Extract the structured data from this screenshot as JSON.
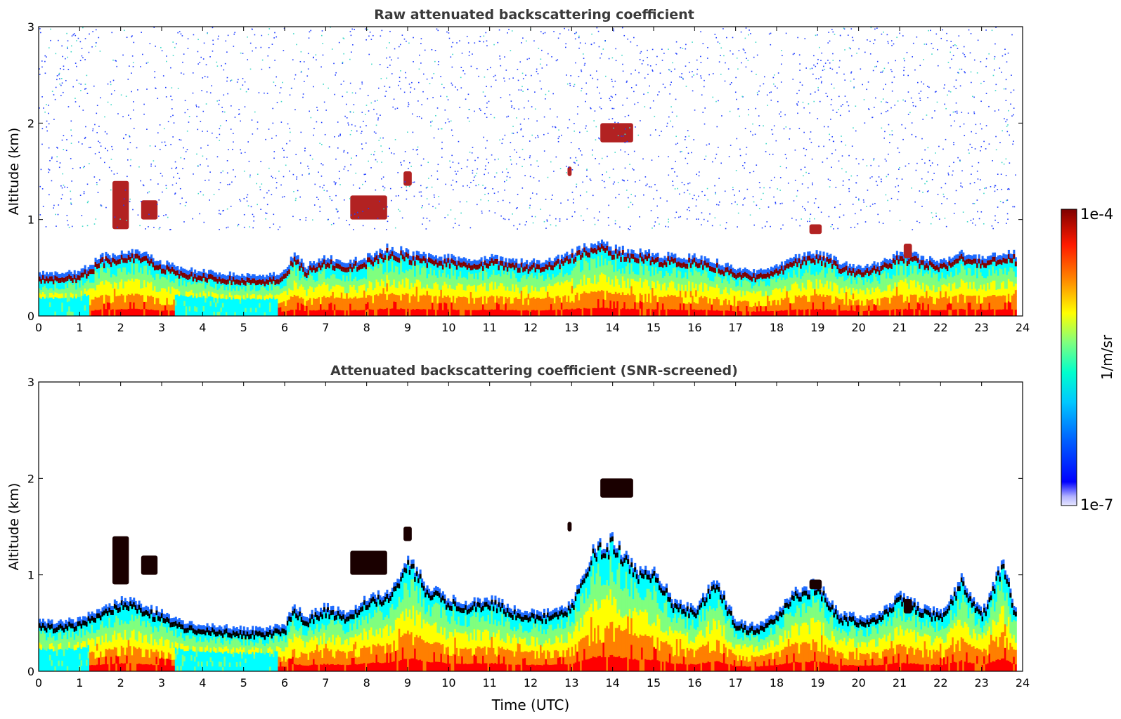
{
  "chart_data": [
    {
      "type": "heatmap",
      "title": "Raw attenuated backscattering coefficient",
      "xlabel": "",
      "ylabel": "Altitude (km)",
      "xlim": [
        0,
        24
      ],
      "ylim": [
        0,
        3
      ],
      "x_ticks": [
        "0",
        "1",
        "2",
        "3",
        "4",
        "5",
        "6",
        "7",
        "8",
        "9",
        "10",
        "11",
        "12",
        "13",
        "14",
        "15",
        "16",
        "17",
        "18",
        "19",
        "20",
        "21",
        "22",
        "23",
        "24"
      ],
      "y_ticks": [
        "0",
        "1",
        "2",
        "3"
      ],
      "grid": false,
      "screened": false,
      "layer_top_km": [
        [
          0,
          0.38
        ],
        [
          0.5,
          0.38
        ],
        [
          1,
          0.4
        ],
        [
          1.5,
          0.55
        ],
        [
          2,
          0.6
        ],
        [
          2.5,
          0.58
        ],
        [
          3,
          0.5
        ],
        [
          3.5,
          0.42
        ],
        [
          4,
          0.4
        ],
        [
          4.5,
          0.38
        ],
        [
          5,
          0.36
        ],
        [
          5.5,
          0.35
        ],
        [
          6,
          0.4
        ],
        [
          6.2,
          0.6
        ],
        [
          6.5,
          0.45
        ],
        [
          7,
          0.55
        ],
        [
          7.5,
          0.5
        ],
        [
          8,
          0.55
        ],
        [
          8.5,
          0.65
        ],
        [
          9,
          0.6
        ],
        [
          9.5,
          0.55
        ],
        [
          10,
          0.55
        ],
        [
          10.5,
          0.5
        ],
        [
          11,
          0.55
        ],
        [
          11.5,
          0.5
        ],
        [
          12,
          0.5
        ],
        [
          12.5,
          0.52
        ],
        [
          13,
          0.6
        ],
        [
          13.5,
          0.7
        ],
        [
          14,
          0.65
        ],
        [
          14.5,
          0.6
        ],
        [
          15,
          0.58
        ],
        [
          15.5,
          0.55
        ],
        [
          16,
          0.55
        ],
        [
          16.5,
          0.5
        ],
        [
          17,
          0.42
        ],
        [
          17.5,
          0.4
        ],
        [
          18,
          0.45
        ],
        [
          18.5,
          0.55
        ],
        [
          19,
          0.6
        ],
        [
          19.5,
          0.5
        ],
        [
          20,
          0.45
        ],
        [
          20.5,
          0.48
        ],
        [
          21,
          0.6
        ],
        [
          21.5,
          0.55
        ],
        [
          22,
          0.5
        ],
        [
          22.5,
          0.6
        ],
        [
          23,
          0.55
        ],
        [
          23.5,
          0.58
        ],
        [
          23.8,
          0.58
        ]
      ],
      "elevated_layers_km": [
        {
          "t0": 1.8,
          "t1": 2.2,
          "z0": 0.9,
          "z1": 1.4
        },
        {
          "t0": 2.5,
          "t1": 2.9,
          "z0": 1.0,
          "z1": 1.2
        },
        {
          "t0": 7.6,
          "t1": 8.5,
          "z0": 1.0,
          "z1": 1.25
        },
        {
          "t0": 8.9,
          "t1": 9.1,
          "z0": 1.35,
          "z1": 1.5
        },
        {
          "t0": 12.9,
          "t1": 13.0,
          "z0": 1.45,
          "z1": 1.55
        },
        {
          "t0": 13.7,
          "t1": 14.5,
          "z0": 1.8,
          "z1": 2.0
        },
        {
          "t0": 18.8,
          "t1": 19.1,
          "z0": 0.85,
          "z1": 0.95
        },
        {
          "t0": 21.1,
          "t1": 21.3,
          "z0": 0.6,
          "z1": 0.75
        }
      ]
    },
    {
      "type": "heatmap",
      "title": "Attenuated backscattering coefficient (SNR-screened)",
      "xlabel": "Time (UTC)",
      "ylabel": "Altitude (km)",
      "xlim": [
        0,
        24
      ],
      "ylim": [
        0,
        3
      ],
      "x_ticks": [
        "0",
        "1",
        "2",
        "3",
        "4",
        "5",
        "6",
        "7",
        "8",
        "9",
        "10",
        "11",
        "12",
        "13",
        "14",
        "15",
        "16",
        "17",
        "18",
        "19",
        "20",
        "21",
        "22",
        "23",
        "24"
      ],
      "y_ticks": [
        "0",
        "1",
        "2",
        "3"
      ],
      "grid": false,
      "screened": true,
      "layer_top_km": [
        [
          0,
          0.45
        ],
        [
          0.5,
          0.45
        ],
        [
          1,
          0.48
        ],
        [
          1.5,
          0.58
        ],
        [
          2,
          0.7
        ],
        [
          2.5,
          0.62
        ],
        [
          3,
          0.55
        ],
        [
          3.5,
          0.45
        ],
        [
          4,
          0.42
        ],
        [
          4.5,
          0.4
        ],
        [
          5,
          0.38
        ],
        [
          5.5,
          0.38
        ],
        [
          6,
          0.42
        ],
        [
          6.2,
          0.65
        ],
        [
          6.5,
          0.5
        ],
        [
          7,
          0.62
        ],
        [
          7.5,
          0.55
        ],
        [
          8,
          0.7
        ],
        [
          8.5,
          0.75
        ],
        [
          9,
          1.1
        ],
        [
          9.5,
          0.8
        ],
        [
          10,
          0.7
        ],
        [
          10.5,
          0.65
        ],
        [
          11,
          0.7
        ],
        [
          11.5,
          0.6
        ],
        [
          12,
          0.55
        ],
        [
          12.5,
          0.55
        ],
        [
          13,
          0.65
        ],
        [
          13.5,
          1.2
        ],
        [
          14,
          1.3
        ],
        [
          14.5,
          1.0
        ],
        [
          15,
          1.0
        ],
        [
          15.5,
          0.65
        ],
        [
          16,
          0.6
        ],
        [
          16.5,
          0.9
        ],
        [
          17,
          0.45
        ],
        [
          17.5,
          0.42
        ],
        [
          18,
          0.55
        ],
        [
          18.5,
          0.8
        ],
        [
          19,
          0.85
        ],
        [
          19.5,
          0.55
        ],
        [
          20,
          0.5
        ],
        [
          20.5,
          0.55
        ],
        [
          21,
          0.75
        ],
        [
          21.5,
          0.6
        ],
        [
          22,
          0.55
        ],
        [
          22.5,
          0.9
        ],
        [
          23,
          0.55
        ],
        [
          23.5,
          1.1
        ],
        [
          23.8,
          0.58
        ]
      ],
      "elevated_layers_km": [
        {
          "t0": 1.8,
          "t1": 2.2,
          "z0": 0.9,
          "z1": 1.4
        },
        {
          "t0": 2.5,
          "t1": 2.9,
          "z0": 1.0,
          "z1": 1.2
        },
        {
          "t0": 7.6,
          "t1": 8.5,
          "z0": 1.0,
          "z1": 1.25
        },
        {
          "t0": 8.9,
          "t1": 9.1,
          "z0": 1.35,
          "z1": 1.5
        },
        {
          "t0": 12.9,
          "t1": 13.0,
          "z0": 1.45,
          "z1": 1.55
        },
        {
          "t0": 13.7,
          "t1": 14.5,
          "z0": 1.8,
          "z1": 2.0
        },
        {
          "t0": 18.8,
          "t1": 19.1,
          "z0": 0.85,
          "z1": 0.95
        },
        {
          "t0": 21.1,
          "t1": 21.3,
          "z0": 0.6,
          "z1": 0.75
        }
      ]
    }
  ],
  "colorbar": {
    "label": "1/m/sr",
    "max_label": "1e-4",
    "min_label": "1e-7",
    "scale": "log",
    "range": [
      1e-07,
      0.0001
    ],
    "colormap": [
      "#00007f",
      "#0000ff",
      "#007fff",
      "#00ffff",
      "#7fff7f",
      "#ffff00",
      "#ff7f00",
      "#ff0000",
      "#7f0000"
    ],
    "screened_peak_color": "#000000"
  }
}
